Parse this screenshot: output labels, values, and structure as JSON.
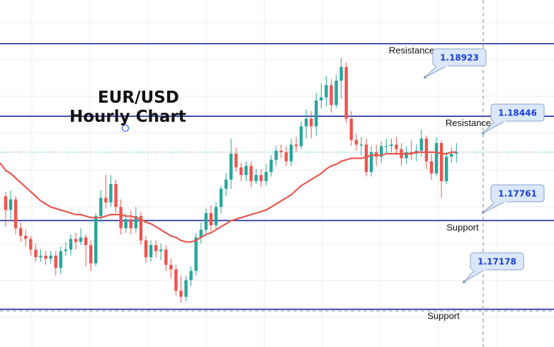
{
  "chart_data": {
    "type": "candlestick",
    "title": "EUR/USD",
    "subtitle": "Hourly Chart",
    "colors": {
      "up": "#26a69a",
      "down": "#ef5350",
      "moving_average": "#e8584f",
      "level_lines": "#1b2a9c",
      "callout_fill": "#dbe8fb",
      "callout_border": "#8aa2c8",
      "grid": "#eeeeee"
    },
    "y_range": [
      1.1693,
      1.1921
    ],
    "grid": true,
    "levels": [
      {
        "label": "Resistance",
        "value": 1.18923,
        "callout": "1.18923"
      },
      {
        "label": "Resistance",
        "value": 1.18446,
        "callout": "1.18446"
      },
      {
        "label": "Support",
        "value": 1.17761,
        "callout": "1.17761"
      },
      {
        "label": "Support",
        "value": 1.17178,
        "callout": "1.17178"
      }
    ],
    "candles": [
      [
        1.1792,
        1.1783,
        1.1795,
        1.1772
      ],
      [
        1.1783,
        1.179,
        1.1796,
        1.1777
      ],
      [
        1.179,
        1.1771,
        1.1792,
        1.1767
      ],
      [
        1.1771,
        1.1766,
        1.1775,
        1.1762
      ],
      [
        1.1766,
        1.1764,
        1.177,
        1.1759
      ],
      [
        1.1764,
        1.1757,
        1.1766,
        1.1753
      ],
      [
        1.1757,
        1.1752,
        1.1761,
        1.1749
      ],
      [
        1.1752,
        1.1753,
        1.1757,
        1.1749
      ],
      [
        1.1753,
        1.1751,
        1.1756,
        1.1747
      ],
      [
        1.1751,
        1.1753,
        1.1756,
        1.1748
      ],
      [
        1.1753,
        1.1745,
        1.1756,
        1.174
      ],
      [
        1.1745,
        1.1756,
        1.1759,
        1.1741
      ],
      [
        1.1756,
        1.1757,
        1.1762,
        1.1753
      ],
      [
        1.1757,
        1.1764,
        1.1767,
        1.1753
      ],
      [
        1.1764,
        1.1762,
        1.1768,
        1.1757
      ],
      [
        1.1762,
        1.1765,
        1.1771,
        1.176
      ],
      [
        1.1765,
        1.176,
        1.1767,
        1.1746
      ],
      [
        1.176,
        1.1748,
        1.1763,
        1.1743
      ],
      [
        1.1748,
        1.1779,
        1.1781,
        1.1746
      ],
      [
        1.1779,
        1.1791,
        1.1796,
        1.1775
      ],
      [
        1.1791,
        1.1788,
        1.1806,
        1.1784
      ],
      [
        1.1788,
        1.18,
        1.1806,
        1.1785
      ],
      [
        1.18,
        1.1785,
        1.1803,
        1.1781
      ],
      [
        1.1785,
        1.1771,
        1.179,
        1.1767
      ],
      [
        1.1771,
        1.1777,
        1.1781,
        1.1768
      ],
      [
        1.1777,
        1.1771,
        1.1783,
        1.1767
      ],
      [
        1.1771,
        1.1779,
        1.1785,
        1.1768
      ],
      [
        1.1779,
        1.1763,
        1.1782,
        1.176
      ],
      [
        1.1763,
        1.1752,
        1.1766,
        1.1748
      ],
      [
        1.1752,
        1.176,
        1.1763,
        1.1749
      ],
      [
        1.176,
        1.1756,
        1.1763,
        1.1752
      ],
      [
        1.1756,
        1.1757,
        1.1761,
        1.175
      ],
      [
        1.1757,
        1.1747,
        1.176,
        1.1743
      ],
      [
        1.1747,
        1.1744,
        1.1751,
        1.1738
      ],
      [
        1.1744,
        1.173,
        1.1747,
        1.1727
      ],
      [
        1.173,
        1.1726,
        1.174,
        1.1722
      ],
      [
        1.1726,
        1.1737,
        1.174,
        1.1723
      ],
      [
        1.1737,
        1.1743,
        1.1746,
        1.1733
      ],
      [
        1.1743,
        1.1765,
        1.1768,
        1.174
      ],
      [
        1.1765,
        1.177,
        1.1775,
        1.1761
      ],
      [
        1.177,
        1.1781,
        1.1784,
        1.1766
      ],
      [
        1.1781,
        1.1773,
        1.1786,
        1.1769
      ],
      [
        1.1773,
        1.1785,
        1.1788,
        1.177
      ],
      [
        1.1785,
        1.1797,
        1.1799,
        1.1781
      ],
      [
        1.1797,
        1.1803,
        1.1807,
        1.1792
      ],
      [
        1.1803,
        1.182,
        1.183,
        1.1797
      ],
      [
        1.182,
        1.1811,
        1.1824,
        1.1808
      ],
      [
        1.1811,
        1.1806,
        1.1814,
        1.1802
      ],
      [
        1.1806,
        1.1812,
        1.1815,
        1.1802
      ],
      [
        1.1812,
        1.1802,
        1.1815,
        1.1798
      ],
      [
        1.1802,
        1.1806,
        1.181,
        1.18
      ],
      [
        1.1806,
        1.1802,
        1.181,
        1.1798
      ],
      [
        1.1802,
        1.1808,
        1.1813,
        1.1799
      ],
      [
        1.1808,
        1.1816,
        1.1819,
        1.1805
      ],
      [
        1.1816,
        1.1822,
        1.1825,
        1.1812
      ],
      [
        1.1822,
        1.1821,
        1.1826,
        1.1817
      ],
      [
        1.1821,
        1.1815,
        1.1825,
        1.1812
      ],
      [
        1.1815,
        1.1826,
        1.183,
        1.1812
      ],
      [
        1.1826,
        1.1825,
        1.1831,
        1.1821
      ],
      [
        1.1825,
        1.1838,
        1.1841,
        1.1823
      ],
      [
        1.1838,
        1.1843,
        1.1849,
        1.183
      ],
      [
        1.1843,
        1.1838,
        1.1848,
        1.183
      ],
      [
        1.1838,
        1.1855,
        1.186,
        1.1832
      ],
      [
        1.1855,
        1.1857,
        1.1866,
        1.185
      ],
      [
        1.1857,
        1.1865,
        1.1871,
        1.1851
      ],
      [
        1.1865,
        1.1852,
        1.1869,
        1.1847
      ],
      [
        1.1852,
        1.1868,
        1.1872,
        1.185
      ],
      [
        1.1868,
        1.1877,
        1.1883,
        1.1856
      ],
      [
        1.1877,
        1.1843,
        1.188,
        1.184
      ],
      [
        1.1843,
        1.1829,
        1.1848,
        1.1825
      ],
      [
        1.1829,
        1.1826,
        1.1833,
        1.1822
      ],
      [
        1.1826,
        1.1826,
        1.1831,
        1.1819
      ],
      [
        1.1826,
        1.1808,
        1.183,
        1.1805
      ],
      [
        1.1808,
        1.1821,
        1.1825,
        1.1805
      ],
      [
        1.1821,
        1.1818,
        1.1826,
        1.1812
      ],
      [
        1.1818,
        1.1825,
        1.1828,
        1.1814
      ],
      [
        1.1825,
        1.1825,
        1.183,
        1.182
      ],
      [
        1.1825,
        1.1826,
        1.183,
        1.1821
      ],
      [
        1.1826,
        1.1823,
        1.1831,
        1.1819
      ],
      [
        1.1823,
        1.1817,
        1.1827,
        1.1812
      ],
      [
        1.1817,
        1.1821,
        1.1825,
        1.1813
      ],
      [
        1.1821,
        1.182,
        1.1829,
        1.1816
      ],
      [
        1.182,
        1.1822,
        1.1826,
        1.1815
      ],
      [
        1.1822,
        1.183,
        1.1836,
        1.1818
      ],
      [
        1.183,
        1.1815,
        1.1832,
        1.181
      ],
      [
        1.1815,
        1.1807,
        1.182,
        1.1803
      ],
      [
        1.1807,
        1.1827,
        1.1831,
        1.1805
      ],
      [
        1.1827,
        1.1802,
        1.1829,
        1.1791
      ],
      [
        1.1802,
        1.1818,
        1.1821,
        1.18
      ],
      [
        1.1818,
        1.182,
        1.1824,
        1.1814
      ],
      [
        1.182,
        1.1821,
        1.1827,
        1.1814
      ]
    ],
    "moving_average": [
      1.1809,
      1.1807,
      1.1804,
      1.1801,
      1.1798,
      1.1795,
      1.1792,
      1.1789,
      1.1787,
      1.1785,
      1.1784,
      1.1783,
      1.1782,
      1.1781,
      1.178,
      1.178,
      1.1779,
      1.1778,
      1.1778,
      1.1778,
      1.1779,
      1.178,
      1.178,
      1.178,
      1.1779,
      1.1779,
      1.1778,
      1.1777,
      1.1775,
      1.1774,
      1.1772,
      1.177,
      1.1768,
      1.1766,
      1.1765,
      1.1763,
      1.1762,
      1.1762,
      1.1763,
      1.1765,
      1.1767,
      1.1768,
      1.177,
      1.1772,
      1.1774,
      1.1776,
      1.1777,
      1.1778,
      1.1779,
      1.178,
      1.1781,
      1.1782,
      1.1783,
      1.1785,
      1.1787,
      1.1789,
      1.1791,
      1.1793,
      1.1796,
      1.1799,
      1.1801,
      1.1803,
      1.1805,
      1.1807,
      1.181,
      1.1812,
      1.1813,
      1.1815,
      1.1816,
      1.1817,
      1.1817,
      1.1817,
      1.1818,
      1.1819,
      1.1819,
      1.1819,
      1.182,
      1.182,
      1.182,
      1.182,
      1.182,
      1.182,
      1.1821,
      1.1821,
      1.1821,
      1.1821,
      1.1821,
      1.182,
      1.182,
      1.1821,
      1.1821
    ],
    "last_price": 1.1821
  }
}
